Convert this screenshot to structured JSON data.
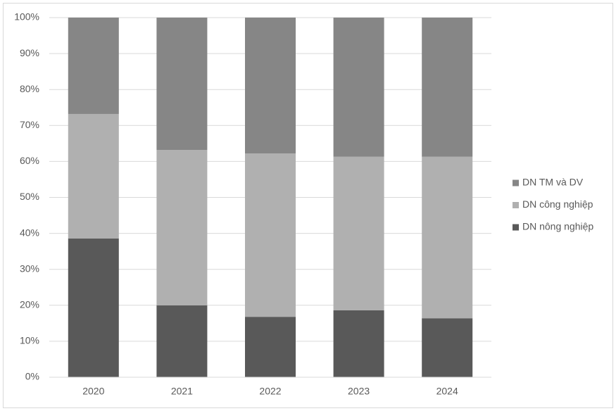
{
  "chart_data": {
    "type": "stacked_bar",
    "categories": [
      "2020",
      "2021",
      "2022",
      "2023",
      "2024"
    ],
    "series": [
      {
        "name": "DN nông nghiệp",
        "color": "#595959",
        "values": [
          38.6,
          20.0,
          16.8,
          18.6,
          16.4
        ]
      },
      {
        "name": "DN công nghiệp",
        "color": "#b0b0b0",
        "values": [
          34.6,
          43.2,
          45.4,
          42.7,
          44.9
        ]
      },
      {
        "name": "DN TM và DV",
        "color": "#868686",
        "values": [
          26.8,
          36.8,
          37.8,
          38.7,
          38.7
        ]
      }
    ],
    "ylim": [
      0,
      100
    ],
    "yticks": [
      {
        "value": 0,
        "label": "0%"
      },
      {
        "value": 10,
        "label": "10%"
      },
      {
        "value": 20,
        "label": "20%"
      },
      {
        "value": 30,
        "label": "30%"
      },
      {
        "value": 40,
        "label": "40%"
      },
      {
        "value": 50,
        "label": "50%"
      },
      {
        "value": 60,
        "label": "60%"
      },
      {
        "value": 70,
        "label": "70%"
      },
      {
        "value": 80,
        "label": "80%"
      },
      {
        "value": 90,
        "label": "90%"
      },
      {
        "value": 100,
        "label": "100%"
      }
    ],
    "grid": true,
    "legend": "right"
  }
}
